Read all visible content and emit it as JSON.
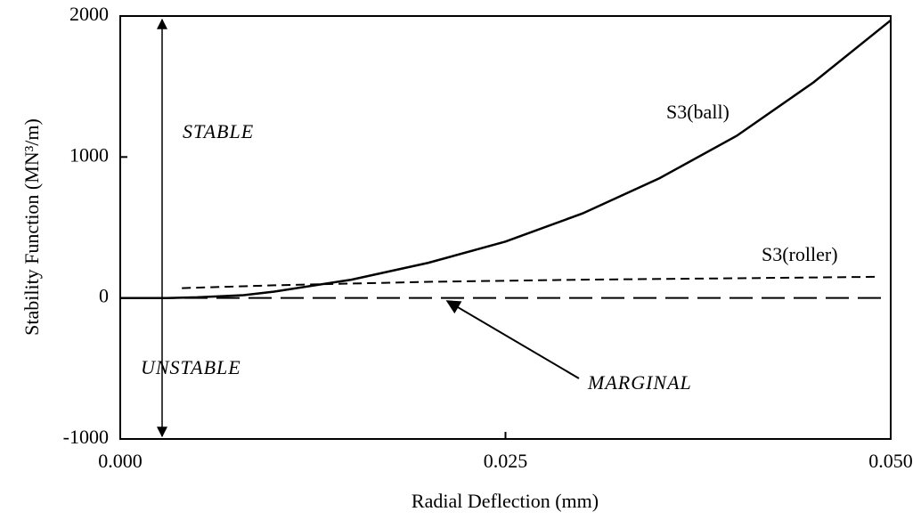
{
  "chart_data": {
    "type": "line",
    "x_label": "Radial Deflection (mm)",
    "y_label": "Stability Function (MN³/m)",
    "xlim": [
      0,
      0.05
    ],
    "ylim": [
      -1000,
      2000
    ],
    "xticks": [
      {
        "value": 0,
        "label": "0.000"
      },
      {
        "value": 0.025,
        "label": "0.025"
      },
      {
        "value": 0.05,
        "label": "0.050"
      }
    ],
    "yticks": [
      2000,
      1000,
      0,
      -1000
    ],
    "series": [
      {
        "name": "S3(ball)",
        "color": "#000000",
        "style": "solid",
        "x": [
          0,
          0.003,
          0.005,
          0.008,
          0.01,
          0.015,
          0.02,
          0.025,
          0.03,
          0.035,
          0.04,
          0.045,
          0.05
        ],
        "values": [
          0,
          0,
          5,
          20,
          45,
          130,
          250,
          400,
          600,
          850,
          1150,
          1530,
          1970
        ]
      },
      {
        "name": "S3(roller)",
        "color": "#000000",
        "style": "dashed",
        "x": [
          0.004,
          0.01,
          0.02,
          0.03,
          0.04,
          0.049
        ],
        "values": [
          70,
          90,
          115,
          130,
          140,
          150
        ]
      }
    ],
    "marginal_line": {
      "label": "MARGINAL",
      "value": 0
    },
    "annotations": {
      "stable": "STABLE",
      "unstable": "UNSTABLE"
    }
  }
}
